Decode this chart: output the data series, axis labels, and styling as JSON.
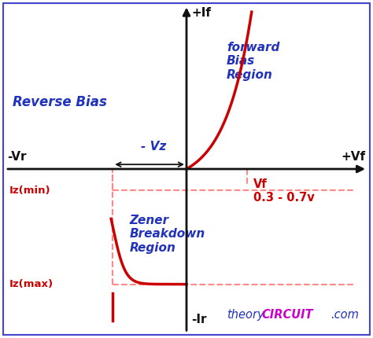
{
  "bg_color": "#ffffff",
  "border_color": "#4444cc",
  "curve_color": "#cc0000",
  "blue_color": "#2233bb",
  "pink_color": "#ff8888",
  "axis_color": "#111111",
  "label_plus_if": "+If",
  "label_minus_ir": "-Ir",
  "label_plus_vf": "+Vf",
  "label_minus_vr": "-Vr",
  "label_vz": "- Vz",
  "label_reverse_bias": "Reverse Bias",
  "label_forward_bias": "forward\nBias\nRegion",
  "label_zener": "Zener\nBreakdown\nRegion",
  "label_iz_min": "Iz(min)",
  "label_iz_max": "Iz(max)",
  "label_vf_line": "Vf\n0.3 - 0.7v",
  "label_theory": "theory",
  "label_circuit": "CIRCUIT",
  "label_com": ".com",
  "figsize": [
    4.74,
    4.3
  ],
  "dpi": 100,
  "xlim": [
    -5.5,
    5.5
  ],
  "ylim": [
    -5.5,
    5.5
  ],
  "origin_x": -0.5,
  "vz_x": -2.2,
  "vf_x": 1.8,
  "iz_min_y": -0.7,
  "iz_max_y": -3.8
}
